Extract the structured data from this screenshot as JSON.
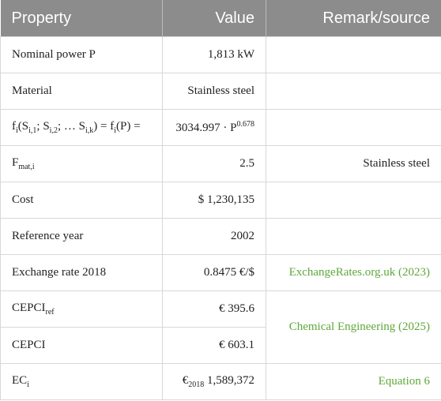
{
  "table": {
    "header": [
      "Property",
      "Value",
      "Remark/source"
    ],
    "rows": [
      {
        "property": [
          "Nominal power P"
        ],
        "value": [
          "1,813 kW"
        ]
      },
      {
        "property": [
          "Material"
        ],
        "value": [
          "Stainless steel"
        ]
      },
      {
        "property": [
          "f",
          {
            "sub": "i"
          },
          "(S",
          {
            "sub": "i,1"
          },
          "; S",
          {
            "sub": "i,2"
          },
          "; … S",
          {
            "sub": "i,k"
          },
          ") = f",
          {
            "sub": "i"
          },
          "(P) ="
        ],
        "value": [
          "3034.997 · P",
          {
            "sup": "0.678"
          }
        ]
      },
      {
        "property": [
          "F",
          {
            "sub": "mat,i"
          }
        ],
        "value": [
          "2.5"
        ],
        "remark": {
          "text": "Stainless steel",
          "color": "#222222"
        }
      },
      {
        "property": [
          "Cost"
        ],
        "value": [
          "$ 1,230,135"
        ]
      },
      {
        "property": [
          "Reference year"
        ],
        "value": [
          "2002"
        ]
      },
      {
        "property": [
          "Exchange rate 2018"
        ],
        "value": [
          "0.8475 €/$"
        ],
        "remark": {
          "text": "ExchangeRates.org.uk (2023)",
          "color": "#5fa83a"
        }
      },
      {
        "property": [
          "CEPCI",
          {
            "sub": "ref"
          }
        ],
        "value": [
          "€ 395.6"
        ],
        "remark": {
          "text": "Chemical Engineering (2025)",
          "color": "#5fa83a",
          "rowspan": 2
        }
      },
      {
        "property": [
          "CEPCI"
        ],
        "value": [
          "€ 603.1"
        ]
      },
      {
        "property": [
          "EC",
          {
            "sub": "i"
          }
        ],
        "value": [
          "€",
          {
            "sub": "2018"
          },
          " 1,589,372"
        ],
        "remark": {
          "text": "Equation 6",
          "color": "#5fa83a"
        }
      }
    ]
  }
}
